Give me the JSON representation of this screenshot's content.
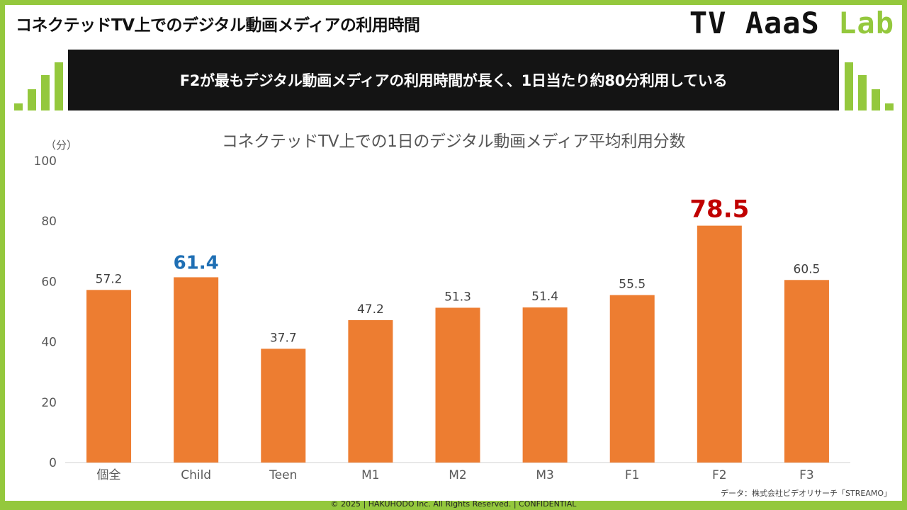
{
  "header": {
    "title": "コネクテッドTV上でのデジタル動画メディアの利用時間",
    "logo_part1": "TV AaaS ",
    "logo_part2": "Lab"
  },
  "banner": {
    "text": "F2が最もデジタル動画メディアの利用時間が長く、1日当たり約80分利用している"
  },
  "chart_data": {
    "type": "bar",
    "title": "コネクテッドTV上での1日のデジタル動画メディア平均利用分数",
    "ylabel": "（分）",
    "xlabel": "",
    "ylim": [
      0,
      100
    ],
    "yticks": [
      0,
      20,
      40,
      60,
      80,
      100
    ],
    "grid": false,
    "categories": [
      "個全",
      "Child",
      "Teen",
      "M1",
      "M2",
      "M3",
      "F1",
      "F2",
      "F3"
    ],
    "values": [
      57.2,
      61.4,
      37.7,
      47.2,
      51.3,
      51.4,
      55.5,
      78.5,
      60.5
    ],
    "labels": [
      "57.2",
      "61.4",
      "37.7",
      "47.2",
      "51.3",
      "51.4",
      "55.5",
      "78.5",
      "60.5"
    ],
    "bar_color": "#ed7d31",
    "highlights": [
      {
        "category": "Child",
        "color": "#1f6fb4"
      },
      {
        "category": "F2",
        "color": "#c00000"
      }
    ]
  },
  "source": "データ：株式会社ビデオリサーチ「STREAMO」",
  "footer": "© 2025 | HAKUHODO Inc. All Rights Reserved. | CONFIDENTIAL",
  "colors": {
    "accent": "#94c83d",
    "banner_bg": "#141414"
  }
}
